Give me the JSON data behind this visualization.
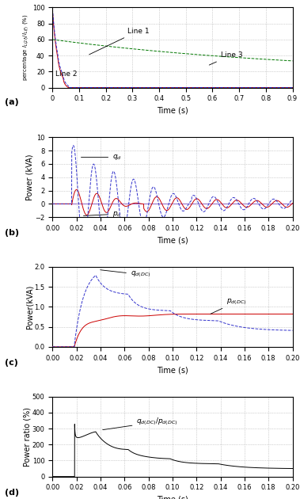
{
  "fig_width": 3.79,
  "fig_height": 6.3,
  "dpi": 100,
  "panel_a": {
    "ylabel": "percentage $I_{L(2f)}/I_{L(f)}$ (%)",
    "xlabel": "Time (s)",
    "xlim": [
      0,
      0.9
    ],
    "ylim": [
      0,
      100
    ],
    "xticks": [
      0,
      0.1,
      0.2,
      0.3,
      0.4,
      0.5,
      0.6,
      0.7,
      0.8,
      0.9
    ],
    "yticks": [
      0,
      20,
      40,
      60,
      80,
      100
    ],
    "label": "(a)",
    "line1_color": "#3333cc",
    "line2_color": "#cc0000",
    "line3_color": "#007700",
    "line1_label": "Line 1",
    "line2_label": "Line 2",
    "line3_label": "Line 3"
  },
  "panel_b": {
    "ylabel": "Power (kVA)",
    "xlabel": "Time (s)",
    "xlim": [
      0,
      0.2
    ],
    "ylim": [
      -2,
      10
    ],
    "xticks": [
      0,
      0.02,
      0.04,
      0.06,
      0.08,
      0.1,
      0.12,
      0.14,
      0.16,
      0.18,
      0.2
    ],
    "yticks": [
      -2,
      0,
      2,
      4,
      6,
      8,
      10
    ],
    "label": "(b)",
    "qd_color": "#3333cc",
    "pd_color": "#cc0000",
    "zero_color": "#6600aa",
    "qd_label": "$q_d$",
    "pd_label": "$p_d$"
  },
  "panel_c": {
    "ylabel": "Power(kVA)",
    "xlabel": "Time (s)",
    "xlim": [
      0,
      0.2
    ],
    "ylim": [
      0,
      2
    ],
    "xticks": [
      0,
      0.02,
      0.04,
      0.06,
      0.08,
      0.1,
      0.12,
      0.14,
      0.16,
      0.18,
      0.2
    ],
    "yticks": [
      0,
      0.5,
      1.0,
      1.5,
      2.0
    ],
    "label": "(c)",
    "qd_color": "#3333cc",
    "pd_color": "#cc0000",
    "qd_label": "$q_{d(DC)}$",
    "pd_label": "$p_{d(DC)}$"
  },
  "panel_d": {
    "ylabel": "Power ratio (%)",
    "xlabel": "Time (s)",
    "xlim": [
      0,
      0.2
    ],
    "ylim": [
      0,
      500
    ],
    "xticks": [
      0,
      0.02,
      0.04,
      0.06,
      0.08,
      0.1,
      0.12,
      0.14,
      0.16,
      0.18,
      0.2
    ],
    "yticks": [
      0,
      100,
      200,
      300,
      400,
      500
    ],
    "label": "(d)",
    "line_color": "#000000",
    "line_label": "$q_{d(DC)}/p_{d(DC)}$"
  }
}
